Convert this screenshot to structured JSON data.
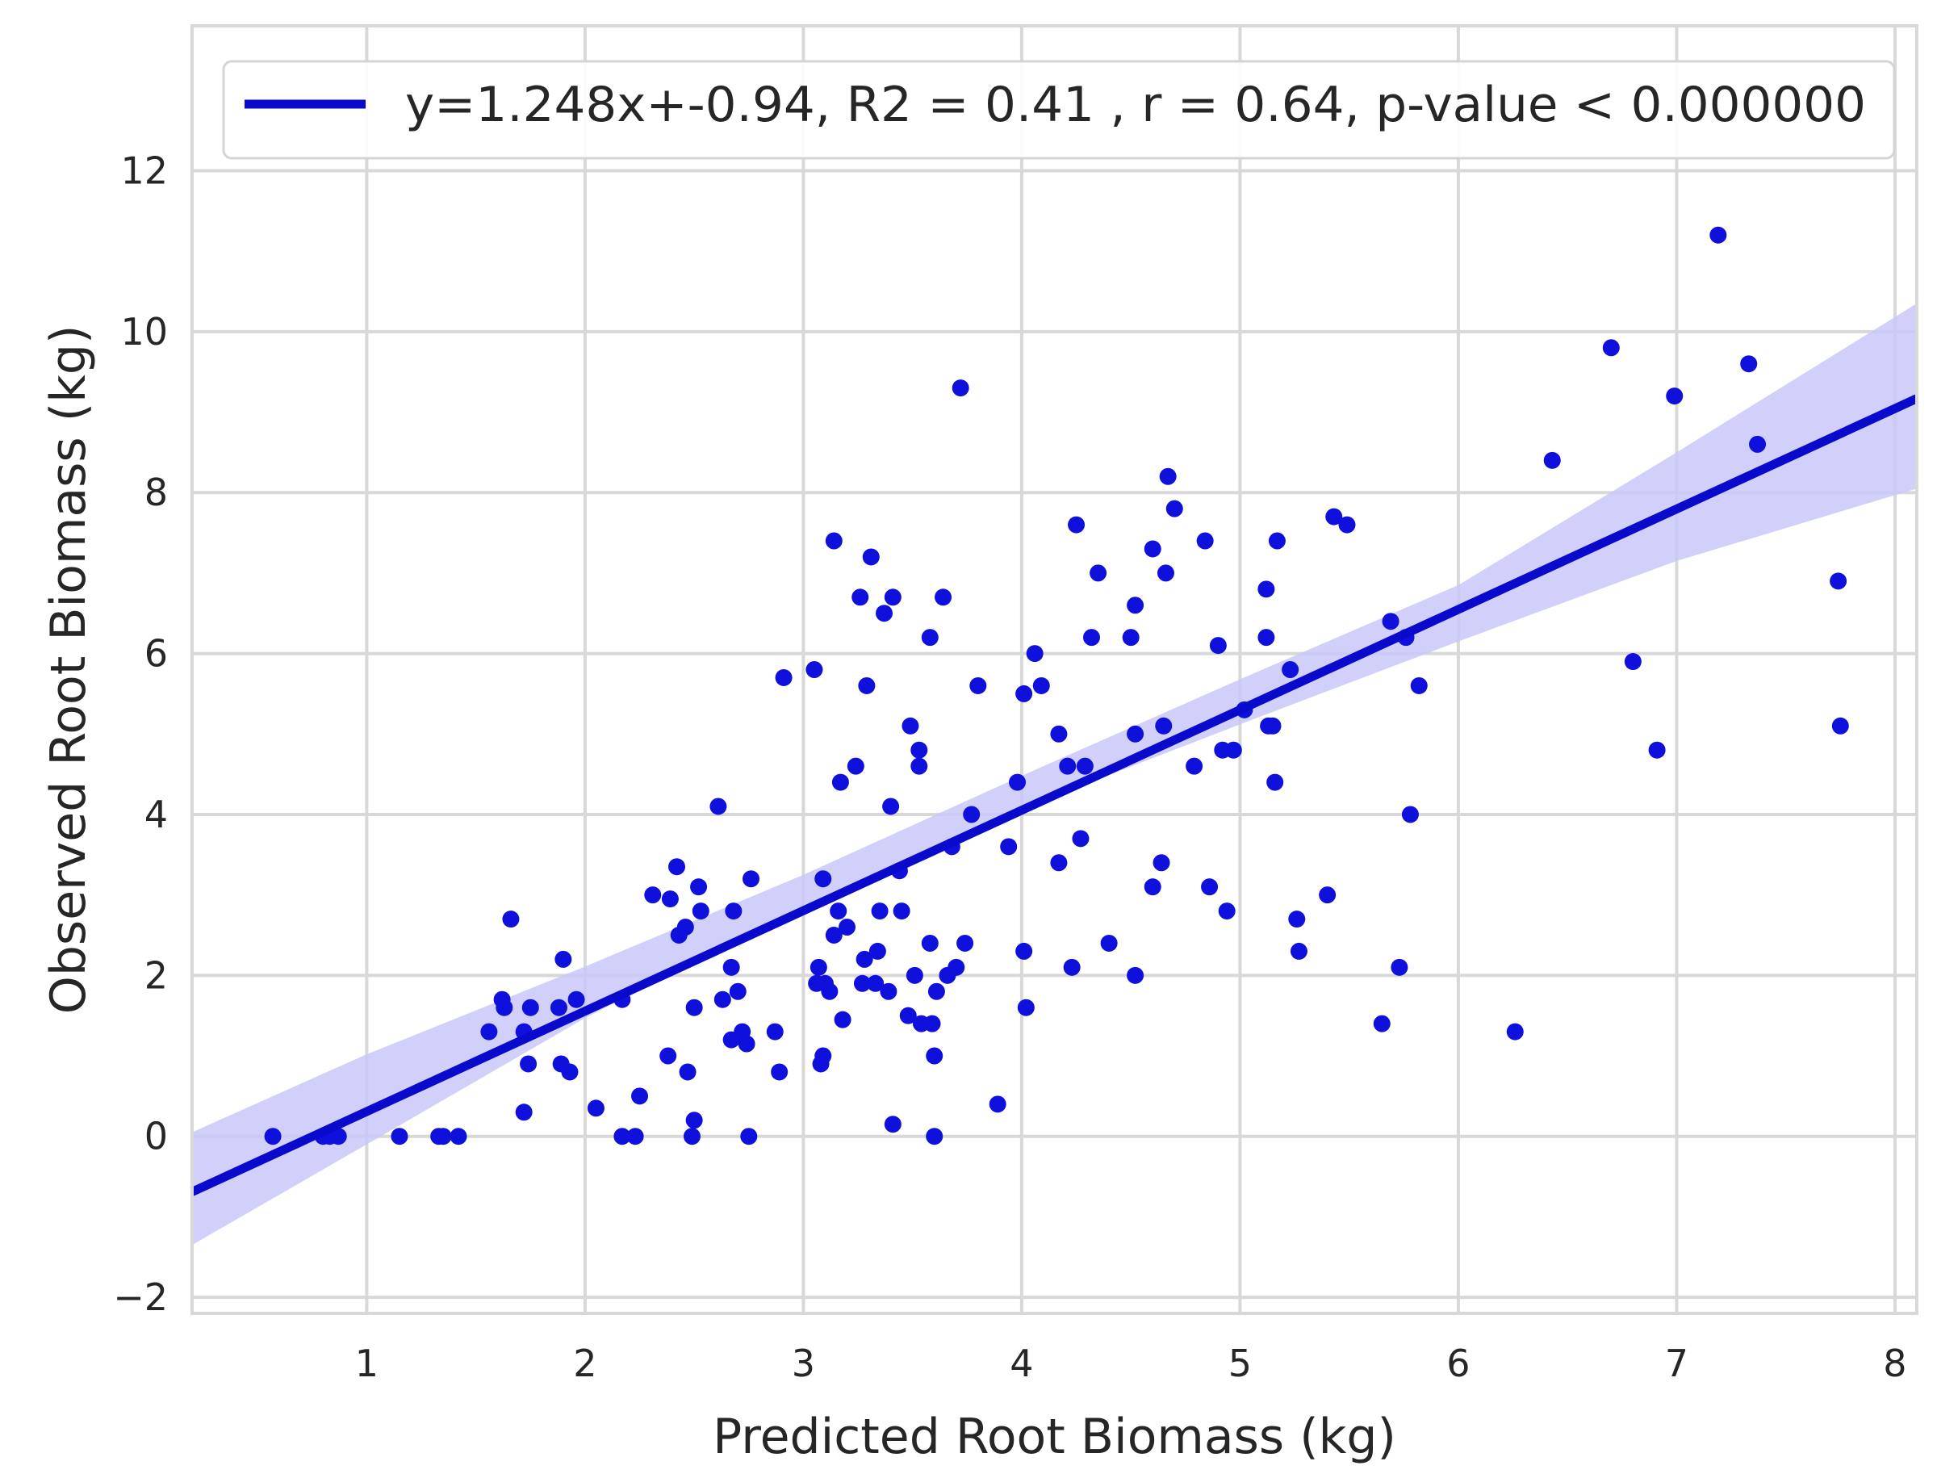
{
  "chart_data": {
    "type": "scatter",
    "title": "",
    "xlabel": "Predicted Root Biomass (kg)",
    "ylabel": "Observed Root Biomass (kg)",
    "xlim": [
      0.2,
      8.1
    ],
    "ylim": [
      -2.2,
      13.8
    ],
    "xticks": [
      1,
      2,
      3,
      4,
      5,
      6,
      7,
      8
    ],
    "yticks": [
      -2,
      0,
      2,
      4,
      6,
      8,
      10,
      12
    ],
    "ytick_labels": [
      "−2",
      "0",
      "2",
      "4",
      "6",
      "8",
      "10",
      "12"
    ],
    "xtick_labels": [
      "1",
      "2",
      "3",
      "4",
      "5",
      "6",
      "7",
      "8"
    ],
    "grid": true,
    "legend_position": "top",
    "colors": {
      "points": "#1010dd",
      "line": "#0a0acc",
      "band": "#c8c8fa",
      "grid": "#d8d8d8"
    },
    "regression": {
      "slope": 1.248,
      "intercept": -0.94,
      "label": "y=1.248x+-0.94, R2 = 0.41 , r = 0.64, p-value < 0.000000",
      "ci_lower": [
        [
          0.2,
          -1.35
        ],
        [
          1.0,
          -0.1
        ],
        [
          2.0,
          1.47
        ],
        [
          3.0,
          2.85
        ],
        [
          4.0,
          4.07
        ],
        [
          5.0,
          5.12
        ],
        [
          6.0,
          6.15
        ],
        [
          7.0,
          7.15
        ],
        [
          8.1,
          8.05
        ]
      ],
      "ci_upper": [
        [
          0.2,
          0.05
        ],
        [
          1.0,
          1.02
        ],
        [
          2.0,
          2.11
        ],
        [
          3.0,
          3.25
        ],
        [
          4.0,
          4.48
        ],
        [
          5.0,
          5.68
        ],
        [
          6.0,
          6.85
        ],
        [
          7.0,
          8.5
        ],
        [
          8.1,
          10.35
        ]
      ]
    },
    "points": [
      [
        0.57,
        0.0
      ],
      [
        0.8,
        0.0
      ],
      [
        0.83,
        0.0
      ],
      [
        0.87,
        0.0
      ],
      [
        1.15,
        0.0
      ],
      [
        1.33,
        0.0
      ],
      [
        1.35,
        0.0
      ],
      [
        1.42,
        0.0
      ],
      [
        1.56,
        1.3
      ],
      [
        1.62,
        1.7
      ],
      [
        1.63,
        1.6
      ],
      [
        1.66,
        2.7
      ],
      [
        1.72,
        1.3
      ],
      [
        1.72,
        0.3
      ],
      [
        1.74,
        0.9
      ],
      [
        1.75,
        1.6
      ],
      [
        1.88,
        1.6
      ],
      [
        1.89,
        0.9
      ],
      [
        1.9,
        2.2
      ],
      [
        1.93,
        0.8
      ],
      [
        1.96,
        1.7
      ],
      [
        2.05,
        0.35
      ],
      [
        2.17,
        0.0
      ],
      [
        2.17,
        1.7
      ],
      [
        2.23,
        0.0
      ],
      [
        2.25,
        0.5
      ],
      [
        2.31,
        3.0
      ],
      [
        2.38,
        1.0
      ],
      [
        2.39,
        2.95
      ],
      [
        2.42,
        3.35
      ],
      [
        2.43,
        2.5
      ],
      [
        2.46,
        2.6
      ],
      [
        2.47,
        0.8
      ],
      [
        2.49,
        0.0
      ],
      [
        2.5,
        0.2
      ],
      [
        2.5,
        1.6
      ],
      [
        2.52,
        3.1
      ],
      [
        2.53,
        2.8
      ],
      [
        2.61,
        4.1
      ],
      [
        2.63,
        1.7
      ],
      [
        2.67,
        2.1
      ],
      [
        2.67,
        1.2
      ],
      [
        2.68,
        2.8
      ],
      [
        2.7,
        1.8
      ],
      [
        2.72,
        1.3
      ],
      [
        2.74,
        1.15
      ],
      [
        2.75,
        0.0
      ],
      [
        2.76,
        3.2
      ],
      [
        2.87,
        1.3
      ],
      [
        2.89,
        0.8
      ],
      [
        2.91,
        5.7
      ],
      [
        3.05,
        5.8
      ],
      [
        3.06,
        1.9
      ],
      [
        3.07,
        2.1
      ],
      [
        3.08,
        0.9
      ],
      [
        3.09,
        1.0
      ],
      [
        3.09,
        3.2
      ],
      [
        3.1,
        1.9
      ],
      [
        3.12,
        1.8
      ],
      [
        3.14,
        7.4
      ],
      [
        3.14,
        2.5
      ],
      [
        3.16,
        2.8
      ],
      [
        3.17,
        4.4
      ],
      [
        3.18,
        1.45
      ],
      [
        3.2,
        2.6
      ],
      [
        3.24,
        4.6
      ],
      [
        3.26,
        6.7
      ],
      [
        3.27,
        1.9
      ],
      [
        3.28,
        2.2
      ],
      [
        3.29,
        5.6
      ],
      [
        3.31,
        7.2
      ],
      [
        3.33,
        1.9
      ],
      [
        3.34,
        2.3
      ],
      [
        3.35,
        2.8
      ],
      [
        3.37,
        6.5
      ],
      [
        3.39,
        1.8
      ],
      [
        3.4,
        4.1
      ],
      [
        3.41,
        0.15
      ],
      [
        3.41,
        6.7
      ],
      [
        3.44,
        3.3
      ],
      [
        3.45,
        2.8
      ],
      [
        3.48,
        1.5
      ],
      [
        3.49,
        5.1
      ],
      [
        3.51,
        2.0
      ],
      [
        3.53,
        4.8
      ],
      [
        3.53,
        4.6
      ],
      [
        3.54,
        1.4
      ],
      [
        3.58,
        6.2
      ],
      [
        3.58,
        2.4
      ],
      [
        3.59,
        1.4
      ],
      [
        3.6,
        1.0
      ],
      [
        3.6,
        0.0
      ],
      [
        3.61,
        1.8
      ],
      [
        3.64,
        6.7
      ],
      [
        3.66,
        2.0
      ],
      [
        3.68,
        3.6
      ],
      [
        3.7,
        2.1
      ],
      [
        3.72,
        9.3
      ],
      [
        3.74,
        2.4
      ],
      [
        3.77,
        4.0
      ],
      [
        3.8,
        5.6
      ],
      [
        3.89,
        0.4
      ],
      [
        3.94,
        3.6
      ],
      [
        3.98,
        4.4
      ],
      [
        4.01,
        5.5
      ],
      [
        4.01,
        2.3
      ],
      [
        4.02,
        1.6
      ],
      [
        4.06,
        6.0
      ],
      [
        4.09,
        5.6
      ],
      [
        4.17,
        5.0
      ],
      [
        4.17,
        3.4
      ],
      [
        4.21,
        4.6
      ],
      [
        4.23,
        2.1
      ],
      [
        4.25,
        7.6
      ],
      [
        4.27,
        3.7
      ],
      [
        4.29,
        4.6
      ],
      [
        4.32,
        6.2
      ],
      [
        4.35,
        7.0
      ],
      [
        4.4,
        2.4
      ],
      [
        4.5,
        6.2
      ],
      [
        4.52,
        5.0
      ],
      [
        4.52,
        2.0
      ],
      [
        4.52,
        6.6
      ],
      [
        4.6,
        7.3
      ],
      [
        4.6,
        3.1
      ],
      [
        4.64,
        3.4
      ],
      [
        4.65,
        5.1
      ],
      [
        4.66,
        7.0
      ],
      [
        4.67,
        8.2
      ],
      [
        4.7,
        7.8
      ],
      [
        4.79,
        4.6
      ],
      [
        4.84,
        7.4
      ],
      [
        4.86,
        3.1
      ],
      [
        4.9,
        6.1
      ],
      [
        4.92,
        4.8
      ],
      [
        4.94,
        2.8
      ],
      [
        4.97,
        4.8
      ],
      [
        5.02,
        5.3
      ],
      [
        5.12,
        6.8
      ],
      [
        5.12,
        6.2
      ],
      [
        5.13,
        5.1
      ],
      [
        5.15,
        5.1
      ],
      [
        5.16,
        4.4
      ],
      [
        5.17,
        7.4
      ],
      [
        5.23,
        5.8
      ],
      [
        5.26,
        2.7
      ],
      [
        5.27,
        2.3
      ],
      [
        5.4,
        3.0
      ],
      [
        5.43,
        7.7
      ],
      [
        5.49,
        7.6
      ],
      [
        5.65,
        1.4
      ],
      [
        5.69,
        6.4
      ],
      [
        5.73,
        2.1
      ],
      [
        5.76,
        6.2
      ],
      [
        5.78,
        4.0
      ],
      [
        5.82,
        5.6
      ],
      [
        6.26,
        1.3
      ],
      [
        6.43,
        8.4
      ],
      [
        6.7,
        9.8
      ],
      [
        6.8,
        5.9
      ],
      [
        6.91,
        4.8
      ],
      [
        6.99,
        9.2
      ],
      [
        7.19,
        11.2
      ],
      [
        7.33,
        9.6
      ],
      [
        7.37,
        8.6
      ],
      [
        7.74,
        6.9
      ],
      [
        7.75,
        5.1
      ]
    ]
  }
}
